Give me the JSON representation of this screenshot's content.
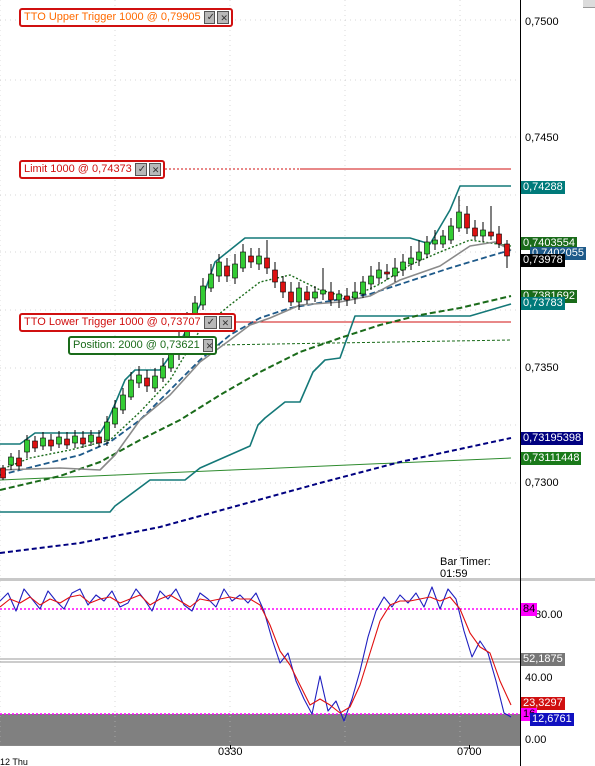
{
  "orders": {
    "upper_trigger": {
      "label": "TTO Upper Trigger 1000 @ 0,79905",
      "color": "#ff6a00"
    },
    "limit": {
      "label": "Limit 1000 @ 0,74373",
      "color": "#d01010"
    },
    "lower_trigger": {
      "label": "TTO Lower Trigger 1000 @ 0,73707",
      "color": "#d01010"
    },
    "position": {
      "label": "Position: 2000 @ 0,73621",
      "color": "#1a6b1a"
    }
  },
  "price_axis": {
    "ticks": [
      "0,7500",
      "0,7450",
      "0,7350",
      "0,7300"
    ],
    "tags": {
      "t1": {
        "text": "0,74288",
        "bg": "#007a7a",
        "fg": "#ffffff"
      },
      "t2": {
        "text": "0,7403554",
        "bg": "#1a6b1a",
        "fg": "#ffffff"
      },
      "t3": {
        "text": "0,7402055",
        "bg": "#1e5a8a",
        "fg": "#ffffff"
      },
      "t4": {
        "text": "0,73978",
        "bg": "#000000",
        "fg": "#ffffff"
      },
      "t5": {
        "text": "0,7381692",
        "bg": "#1a6b1a",
        "fg": "#ffffff"
      },
      "t6": {
        "text": "0,73783",
        "bg": "#007a7a",
        "fg": "#ffffff"
      },
      "t7": {
        "text": "0,73195398",
        "bg": "#000080",
        "fg": "#ffffff"
      },
      "t8": {
        "text": "0,73111448",
        "bg": "#1a7a1a",
        "fg": "#ffffff"
      }
    }
  },
  "bar_timer": "Bar Timer: 01:59",
  "osc_axis": {
    "ticks": [
      "80.00",
      "40.00",
      "0.00"
    ],
    "tags": {
      "o1": {
        "text": "84",
        "bg": "#ff00ff",
        "fg": "#000000"
      },
      "o2": {
        "text": "52,1875",
        "bg": "#777777",
        "fg": "#ffffff"
      },
      "o3": {
        "text": "23,3297",
        "bg": "#d01010",
        "fg": "#ffffff"
      },
      "o4": {
        "text": "16",
        "bg": "#ff00ff",
        "fg": "#000000"
      },
      "o5": {
        "text": "12,6761",
        "bg": "#1010c0",
        "fg": "#ffffff"
      }
    }
  },
  "time_axis": {
    "labels": [
      "0330",
      "0700"
    ],
    "date_fragment": "12 Thu"
  },
  "colors": {
    "bull": "#33cc33",
    "bear": "#dd1111",
    "donchian": "#147878",
    "ema_fast": "#1a6b1a",
    "ema_mid": "#1e5a8a",
    "sma_long": "#000080",
    "trend": "#2e8b2e",
    "stoch_k": "#2020c0",
    "stoch_d": "#e01010",
    "level": "#ff00ff"
  }
}
